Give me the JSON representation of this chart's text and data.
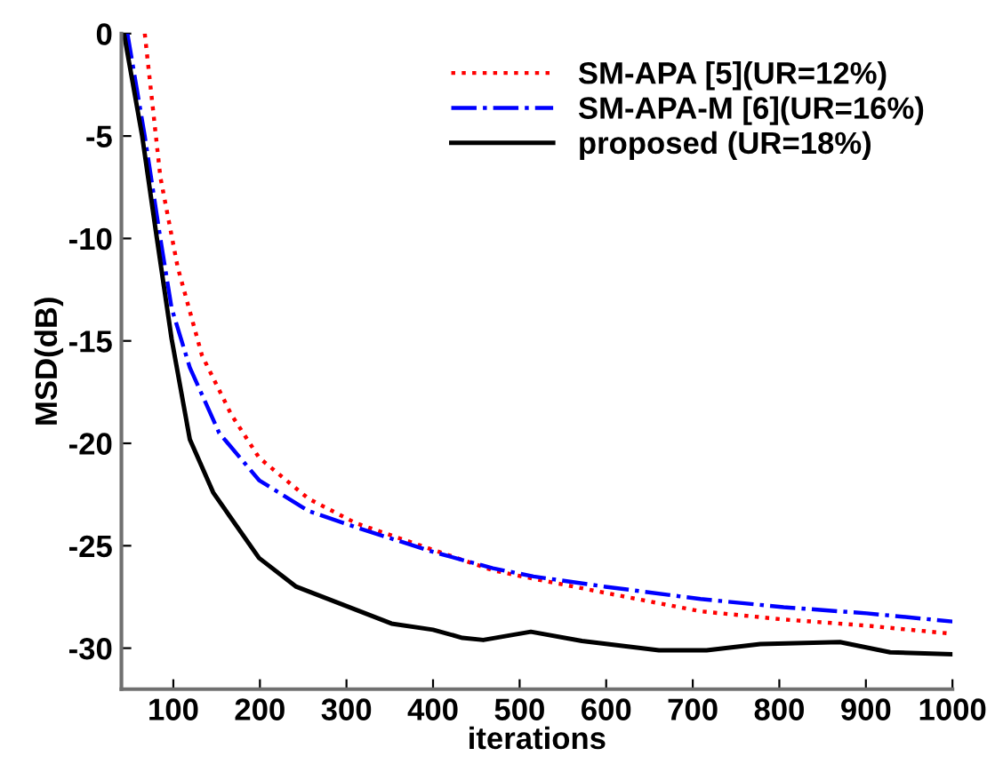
{
  "chart_data": {
    "type": "line",
    "xlabel": "iterations",
    "ylabel": "MSD(dB)",
    "xlim": [
      40,
      1000
    ],
    "ylim": [
      -32,
      0
    ],
    "xticks": [
      100,
      200,
      300,
      400,
      500,
      600,
      700,
      800,
      900,
      1000
    ],
    "yticks": [
      0,
      -5,
      -10,
      -15,
      -20,
      -25,
      -30
    ],
    "grid": false,
    "legend": "top right",
    "marker": "none",
    "series": [
      {
        "name": "SM-APA [5](UR=12%)",
        "color": "#ff0000",
        "line_style": "dotted",
        "x": [
          67,
          85,
          105,
          133,
          167,
          199,
          256,
          311,
          400,
          469,
          503,
          599,
          709,
          805,
          901,
          1000
        ],
        "values": [
          0,
          -7,
          -11.4,
          -15.7,
          -18.6,
          -20.7,
          -22.7,
          -23.9,
          -25.2,
          -26.2,
          -26.5,
          -27.3,
          -28.2,
          -28.6,
          -28.9,
          -29.3
        ]
      },
      {
        "name": "SM-APA-M [6](UR=16%)",
        "color": "#0000ff",
        "line_style": "dashdot",
        "x": [
          47,
          67,
          85,
          98,
          119,
          153,
          199,
          256,
          311,
          400,
          469,
          516,
          599,
          709,
          805,
          901,
          1000
        ],
        "values": [
          0,
          -5,
          -10,
          -13.4,
          -16.3,
          -19.5,
          -21.8,
          -23.3,
          -24.1,
          -25.3,
          -26.1,
          -26.5,
          -27.0,
          -27.6,
          -28.0,
          -28.3,
          -28.7
        ]
      },
      {
        "name": "proposed (UR=18%)",
        "color": "#000000",
        "line_style": "solid",
        "x": [
          43,
          64,
          81,
          98,
          119,
          146,
          199,
          242,
          297,
          352,
          400,
          434,
          458,
          513,
          572,
          661,
          716,
          778,
          870,
          928,
          1000
        ],
        "values": [
          0,
          -5,
          -10,
          -14.9,
          -19.8,
          -22.4,
          -25.6,
          -27,
          -27.9,
          -28.8,
          -29.1,
          -29.5,
          -29.6,
          -29.2,
          -29.65,
          -30.1,
          -30.1,
          -29.8,
          -29.7,
          -30.2,
          -30.3
        ]
      }
    ]
  }
}
